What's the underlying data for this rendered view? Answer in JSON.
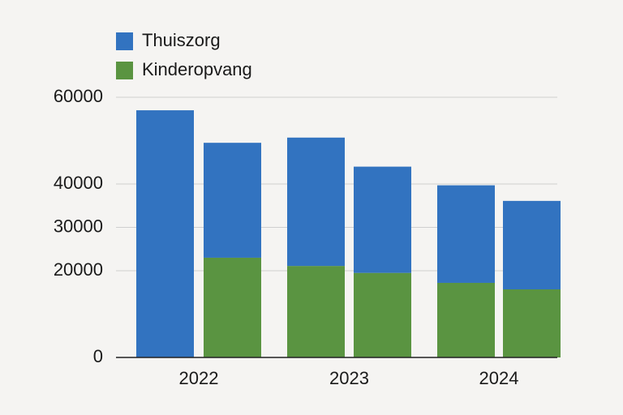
{
  "chart_data": {
    "type": "stacked_bar",
    "categories": [
      "2022",
      null,
      "2023",
      null,
      "2024",
      null
    ],
    "series": [
      {
        "name": "Kinderopvang",
        "color": "#5a9441",
        "values": [
          0,
          23000,
          21100,
          19500,
          17200,
          15700
        ]
      },
      {
        "name": "Thuiszorg",
        "color": "#3273c0",
        "values": [
          57000,
          26500,
          29600,
          24500,
          22500,
          20400
        ]
      }
    ],
    "legend_order": [
      "Thuiszorg",
      "Kinderopvang"
    ],
    "ylim": [
      0,
      60000
    ],
    "yticks": [
      0,
      20000,
      30000,
      40000,
      60000
    ],
    "grid": true,
    "legend": "top-left"
  }
}
